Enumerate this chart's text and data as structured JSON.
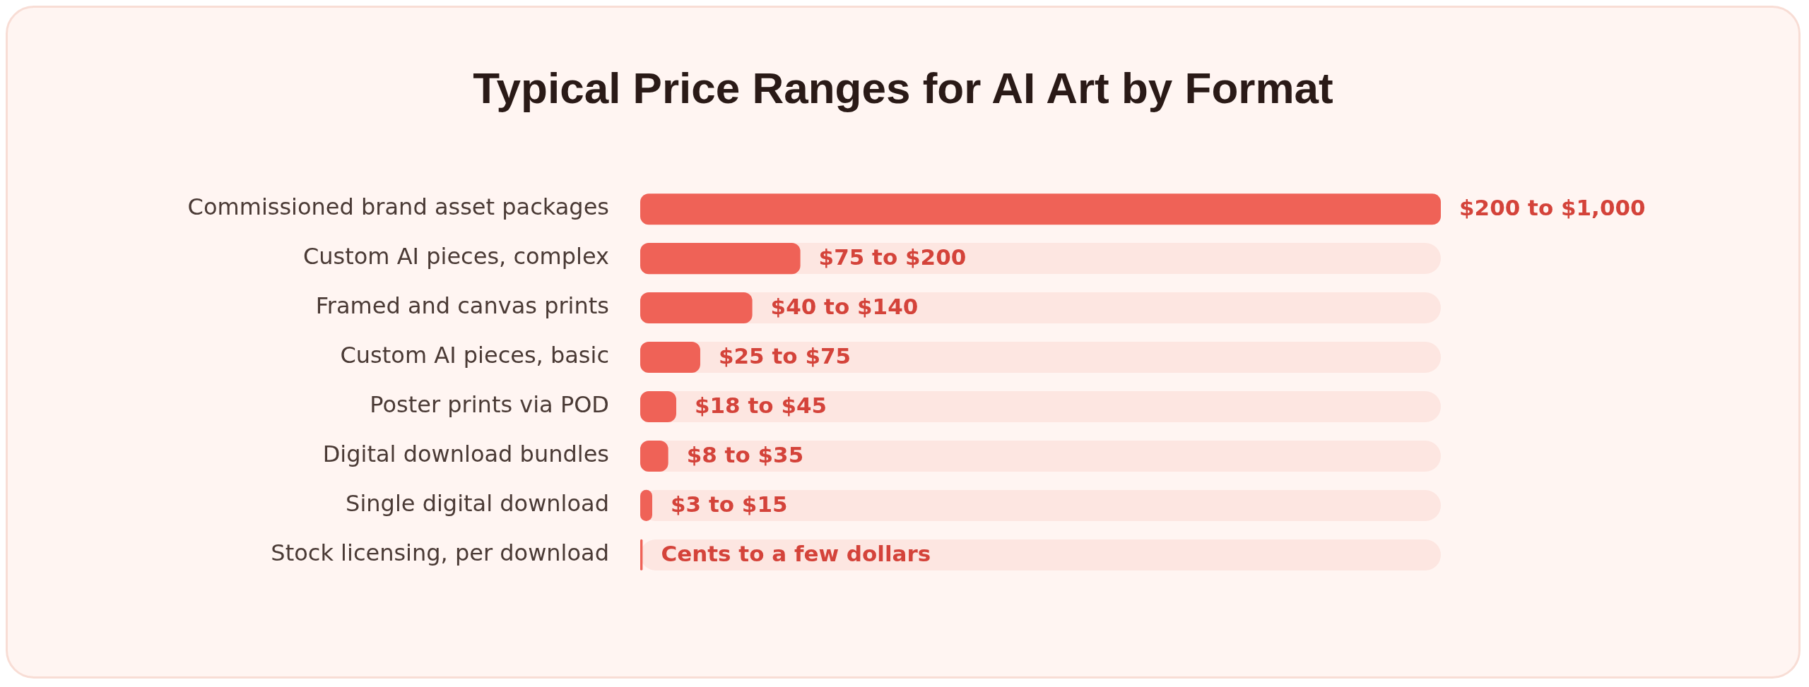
{
  "chart_data": {
    "type": "bar",
    "orientation": "horizontal",
    "title": "Typical Price Ranges for AI Art by Format",
    "categories": [
      "Commissioned brand asset packages",
      "Custom AI pieces, complex",
      "Framed and canvas prints",
      "Custom AI pieces, basic",
      "Poster prints via POD",
      "Digital download bundles",
      "Single digital download",
      "Stock licensing, per download"
    ],
    "values": [
      1000,
      200,
      140,
      75,
      45,
      35,
      15,
      3
    ],
    "value_labels": [
      "$200 to $1,000",
      "$75 to $200",
      "$40 to $140",
      "$25 to $75",
      "$18 to $45",
      "$8 to $35",
      "$3 to $15",
      "Cents to a few dollars"
    ],
    "xlim": [
      0,
      1000
    ],
    "tick_labels": "y",
    "color": "#ef6257",
    "legend": false
  }
}
